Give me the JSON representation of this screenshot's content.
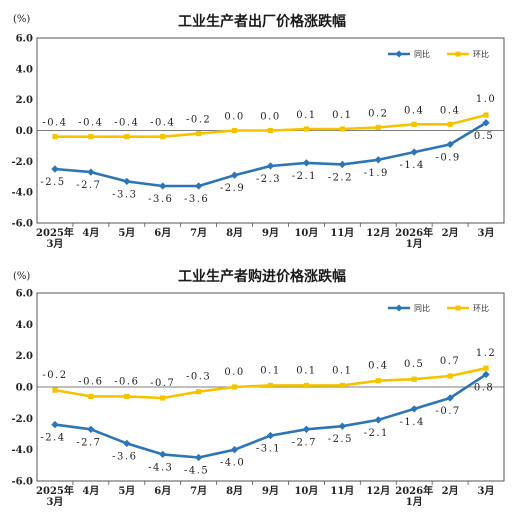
{
  "chart_data": [
    {
      "type": "line",
      "title": "工业生产者出厂价格涨跌幅",
      "unit": "(%)",
      "ylim": [
        -6.0,
        6.0
      ],
      "yticks": [
        "6.0",
        "4.0",
        "2.0",
        "0.0",
        "-2.0",
        "-4.0",
        "-6.0"
      ],
      "categories": [
        "2025年\n3月",
        "4月",
        "5月",
        "6月",
        "7月",
        "8月",
        "9月",
        "10月",
        "11月",
        "12月",
        "2026年\n1月",
        "2月",
        "3月"
      ],
      "legend_position": "top-right",
      "series": [
        {
          "name": "同比",
          "color": "#2e75b6",
          "values": [
            -2.5,
            -2.7,
            -3.3,
            -3.6,
            -3.6,
            -2.9,
            -2.3,
            -2.1,
            -2.2,
            -1.9,
            -1.4,
            -0.9,
            0.5
          ],
          "labels": [
            "-2.5",
            "-2.7",
            "-3.3",
            "-3.6",
            "-3.6",
            "-2.9",
            "-2.3",
            "-2.1",
            "-2.2",
            "-1.9",
            "-1.4",
            "-0.9",
            "0.5"
          ]
        },
        {
          "name": "环比",
          "color": "#f5c400",
          "values": [
            -0.4,
            -0.4,
            -0.4,
            -0.4,
            -0.2,
            0.0,
            0.0,
            0.1,
            0.1,
            0.2,
            0.4,
            0.4,
            1.0
          ],
          "labels": [
            "-0.4",
            "-0.4",
            "-0.4",
            "-0.4",
            "-0.2",
            "0.0",
            "0.0",
            "0.1",
            "0.1",
            "0.2",
            "0.4",
            "0.4",
            "1.0"
          ]
        }
      ]
    },
    {
      "type": "line",
      "title": "工业生产者购进价格涨跌幅",
      "unit": "(%)",
      "ylim": [
        -6.0,
        6.0
      ],
      "yticks": [
        "6.0",
        "4.0",
        "2.0",
        "0.0",
        "-2.0",
        "-4.0",
        "-6.0"
      ],
      "categories": [
        "2025年\n3月",
        "4月",
        "5月",
        "6月",
        "7月",
        "8月",
        "9月",
        "10月",
        "11月",
        "12月",
        "2026年\n1月",
        "2月",
        "3月"
      ],
      "legend_position": "top-right",
      "series": [
        {
          "name": "同比",
          "color": "#2e75b6",
          "values": [
            -2.4,
            -2.7,
            -3.6,
            -4.3,
            -4.5,
            -4.0,
            -3.1,
            -2.7,
            -2.5,
            -2.1,
            -1.4,
            -0.7,
            0.8
          ],
          "labels": [
            "-2.4",
            "-2.7",
            "-3.6",
            "-4.3",
            "-4.5",
            "-4.0",
            "-3.1",
            "-2.7",
            "-2.5",
            "-2.1",
            "-1.4",
            "-0.7",
            "0.8"
          ]
        },
        {
          "name": "环比",
          "color": "#f5c400",
          "values": [
            -0.2,
            -0.6,
            -0.6,
            -0.7,
            -0.3,
            0.0,
            0.1,
            0.1,
            0.1,
            0.4,
            0.5,
            0.7,
            1.2
          ],
          "labels": [
            "-0.2",
            "-0.6",
            "-0.6",
            "-0.7",
            "-0.3",
            "0.0",
            "0.1",
            "0.1",
            "0.1",
            "0.4",
            "0.5",
            "0.7",
            "1.2"
          ]
        }
      ]
    }
  ]
}
